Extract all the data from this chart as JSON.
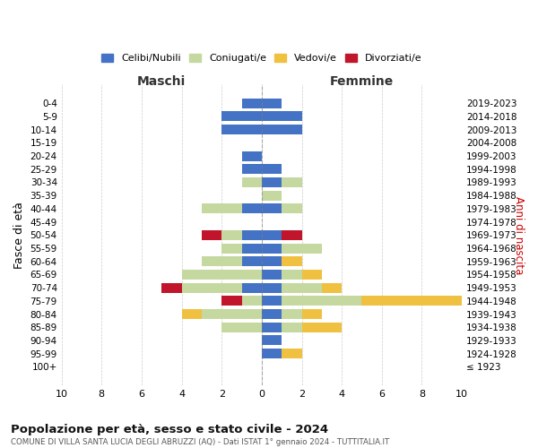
{
  "age_groups": [
    "0-4",
    "5-9",
    "10-14",
    "15-19",
    "20-24",
    "25-29",
    "30-34",
    "35-39",
    "40-44",
    "45-49",
    "50-54",
    "55-59",
    "60-64",
    "65-69",
    "70-74",
    "75-79",
    "80-84",
    "85-89",
    "90-94",
    "95-99",
    "100+"
  ],
  "birth_years": [
    "2019-2023",
    "2014-2018",
    "2009-2013",
    "2004-2008",
    "1999-2003",
    "1994-1998",
    "1989-1993",
    "1984-1988",
    "1979-1983",
    "1974-1978",
    "1969-1973",
    "1964-1968",
    "1959-1963",
    "1954-1958",
    "1949-1953",
    "1944-1948",
    "1939-1943",
    "1934-1938",
    "1929-1933",
    "1924-1928",
    "≤ 1923"
  ],
  "colors": {
    "celibi": "#4472c4",
    "coniugati": "#c5d8a0",
    "vedovi": "#f0c040",
    "divorziati": "#c0152a"
  },
  "maschi": {
    "celibi": [
      1,
      2,
      2,
      0,
      1,
      1,
      0,
      0,
      1,
      0,
      1,
      1,
      1,
      0,
      1,
      0,
      0,
      0,
      0,
      0,
      0
    ],
    "coniugati": [
      0,
      0,
      0,
      0,
      0,
      0,
      1,
      0,
      2,
      0,
      1,
      1,
      2,
      4,
      3,
      1,
      3,
      2,
      0,
      0,
      0
    ],
    "vedovi": [
      0,
      0,
      0,
      0,
      0,
      0,
      0,
      0,
      0,
      0,
      0,
      0,
      0,
      0,
      0,
      0,
      1,
      0,
      0,
      0,
      0
    ],
    "divorziati": [
      0,
      0,
      0,
      0,
      0,
      0,
      0,
      0,
      0,
      0,
      1,
      0,
      0,
      0,
      1,
      1,
      0,
      0,
      0,
      0,
      0
    ]
  },
  "femmine": {
    "celibi": [
      1,
      2,
      2,
      0,
      0,
      1,
      1,
      0,
      1,
      0,
      1,
      1,
      1,
      1,
      1,
      1,
      1,
      1,
      1,
      1,
      0
    ],
    "coniugati": [
      0,
      0,
      0,
      0,
      0,
      0,
      1,
      1,
      1,
      0,
      0,
      2,
      0,
      1,
      2,
      4,
      1,
      1,
      0,
      0,
      0
    ],
    "vedovi": [
      0,
      0,
      0,
      0,
      0,
      0,
      0,
      0,
      0,
      0,
      0,
      0,
      1,
      1,
      1,
      5,
      1,
      2,
      0,
      1,
      0
    ],
    "divorziati": [
      0,
      0,
      0,
      0,
      0,
      0,
      0,
      0,
      0,
      0,
      1,
      0,
      0,
      0,
      0,
      0,
      0,
      0,
      0,
      0,
      0
    ]
  },
  "xlim": 10,
  "title": "Popolazione per età, sesso e stato civile - 2024",
  "subtitle": "COMUNE DI VILLA SANTA LUCIA DEGLI ABRUZZI (AQ) - Dati ISTAT 1° gennaio 2024 - TUTTITALIA.IT",
  "ylabel_left": "Fasce di età",
  "ylabel_right": "Anni di nascita",
  "col_maschi": "Maschi",
  "col_femmine": "Femmine",
  "bg_color": "#ffffff",
  "grid_color": "#cccccc"
}
